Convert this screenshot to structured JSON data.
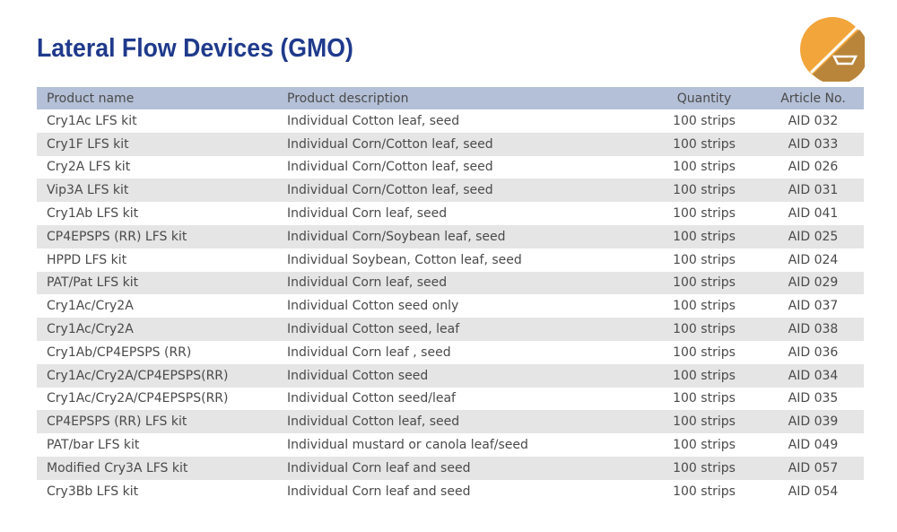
{
  "title": "Lateral Flow Devices (GMO)",
  "colors": {
    "title": "#1f3a8c",
    "header_bg": "#b4c0d7",
    "stripe": "#e5e5e5",
    "logo": "#f0a030"
  },
  "logo_icon": "lateral-flow-strip-icon",
  "headers": [
    "Product name",
    "Product description",
    "Quantity",
    "Article No."
  ],
  "rows": [
    [
      "Cry1Ac LFS kit",
      "Individual Cotton leaf, seed",
      "100 strips",
      "AID 032"
    ],
    [
      "Cry1F LFS kit",
      "Individual Corn/Cotton leaf, seed",
      "100 strips",
      "AID 033"
    ],
    [
      "Cry2A LFS kit",
      "Individual Corn/Cotton leaf, seed",
      "100 strips",
      "AID 026"
    ],
    [
      "Vip3A LFS kit",
      "Individual Corn/Cotton leaf, seed",
      "100 strips",
      "AID 031"
    ],
    [
      "Cry1Ab LFS kit",
      "Individual Corn leaf, seed",
      "100 strips",
      "AID 041"
    ],
    [
      "CP4EPSPS (RR) LFS kit",
      "Individual Corn/Soybean leaf, seed",
      "100 strips",
      "AID 025"
    ],
    [
      "HPPD LFS kit",
      "Individual Soybean, Cotton leaf, seed",
      "100 strips",
      "AID 024"
    ],
    [
      "PAT/Pat LFS kit",
      "Individual Corn leaf, seed",
      "100 strips",
      "AID 029"
    ],
    [
      "Cry1Ac/Cry2A",
      "Individual Cotton seed only",
      "100 strips",
      "AID 037"
    ],
    [
      "Cry1Ac/Cry2A",
      "Individual Cotton seed, leaf",
      "100 strips",
      "AID 038"
    ],
    [
      "Cry1Ab/CP4EPSPS (RR)",
      "Individual Corn leaf , seed",
      "100 strips",
      "AID 036"
    ],
    [
      "Cry1Ac/Cry2A/CP4EPSPS(RR)",
      "Individual Cotton seed",
      "100 strips",
      "AID 034"
    ],
    [
      "Cry1Ac/Cry2A/CP4EPSPS(RR)",
      "Individual Cotton seed/leaf",
      "100 strips",
      "AID 035"
    ],
    [
      "CP4EPSPS (RR) LFS kit",
      "Individual Cotton leaf, seed",
      "100 strips",
      "AID 039"
    ],
    [
      "PAT/bar LFS kit",
      "Individual mustard or canola leaf/seed",
      "100 strips",
      "AID 049"
    ],
    [
      "Modified Cry3A LFS kit",
      "Individual Corn leaf and seed",
      "100 strips",
      "AID 057"
    ],
    [
      "Cry3Bb LFS kit",
      "Individual Corn leaf and seed",
      "100 strips",
      "AID 054"
    ]
  ]
}
